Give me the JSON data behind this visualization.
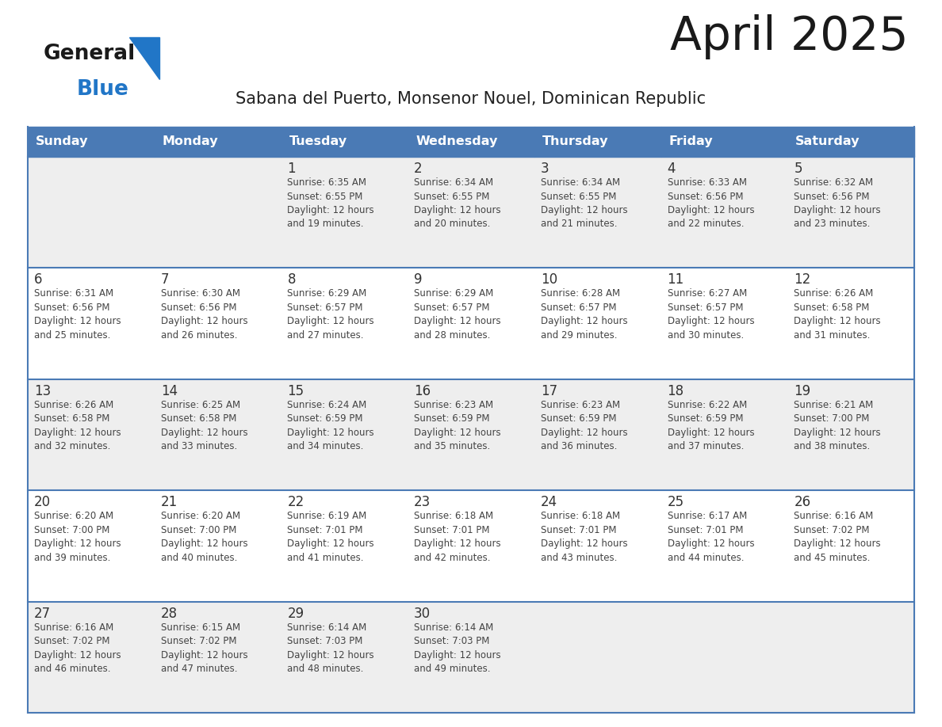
{
  "title": "April 2025",
  "subtitle": "Sabana del Puerto, Monsenor Nouel, Dominican Republic",
  "header_bg_color": "#4a7ab5",
  "header_text_color": "#ffffff",
  "weekdays": [
    "Sunday",
    "Monday",
    "Tuesday",
    "Wednesday",
    "Thursday",
    "Friday",
    "Saturday"
  ],
  "row_bg_odd": "#eeeeee",
  "row_bg_even": "#ffffff",
  "cell_border_color": "#4a7ab5",
  "day_text_color": "#333333",
  "info_text_color": "#444444",
  "title_color": "#1a1a1a",
  "subtitle_color": "#222222",
  "logo_general_color": "#1a1a1a",
  "logo_blue_color": "#2176c7",
  "calendar_data": [
    [
      {
        "day": "",
        "info": ""
      },
      {
        "day": "",
        "info": ""
      },
      {
        "day": "1",
        "info": "Sunrise: 6:35 AM\nSunset: 6:55 PM\nDaylight: 12 hours\nand 19 minutes."
      },
      {
        "day": "2",
        "info": "Sunrise: 6:34 AM\nSunset: 6:55 PM\nDaylight: 12 hours\nand 20 minutes."
      },
      {
        "day": "3",
        "info": "Sunrise: 6:34 AM\nSunset: 6:55 PM\nDaylight: 12 hours\nand 21 minutes."
      },
      {
        "day": "4",
        "info": "Sunrise: 6:33 AM\nSunset: 6:56 PM\nDaylight: 12 hours\nand 22 minutes."
      },
      {
        "day": "5",
        "info": "Sunrise: 6:32 AM\nSunset: 6:56 PM\nDaylight: 12 hours\nand 23 minutes."
      }
    ],
    [
      {
        "day": "6",
        "info": "Sunrise: 6:31 AM\nSunset: 6:56 PM\nDaylight: 12 hours\nand 25 minutes."
      },
      {
        "day": "7",
        "info": "Sunrise: 6:30 AM\nSunset: 6:56 PM\nDaylight: 12 hours\nand 26 minutes."
      },
      {
        "day": "8",
        "info": "Sunrise: 6:29 AM\nSunset: 6:57 PM\nDaylight: 12 hours\nand 27 minutes."
      },
      {
        "day": "9",
        "info": "Sunrise: 6:29 AM\nSunset: 6:57 PM\nDaylight: 12 hours\nand 28 minutes."
      },
      {
        "day": "10",
        "info": "Sunrise: 6:28 AM\nSunset: 6:57 PM\nDaylight: 12 hours\nand 29 minutes."
      },
      {
        "day": "11",
        "info": "Sunrise: 6:27 AM\nSunset: 6:57 PM\nDaylight: 12 hours\nand 30 minutes."
      },
      {
        "day": "12",
        "info": "Sunrise: 6:26 AM\nSunset: 6:58 PM\nDaylight: 12 hours\nand 31 minutes."
      }
    ],
    [
      {
        "day": "13",
        "info": "Sunrise: 6:26 AM\nSunset: 6:58 PM\nDaylight: 12 hours\nand 32 minutes."
      },
      {
        "day": "14",
        "info": "Sunrise: 6:25 AM\nSunset: 6:58 PM\nDaylight: 12 hours\nand 33 minutes."
      },
      {
        "day": "15",
        "info": "Sunrise: 6:24 AM\nSunset: 6:59 PM\nDaylight: 12 hours\nand 34 minutes."
      },
      {
        "day": "16",
        "info": "Sunrise: 6:23 AM\nSunset: 6:59 PM\nDaylight: 12 hours\nand 35 minutes."
      },
      {
        "day": "17",
        "info": "Sunrise: 6:23 AM\nSunset: 6:59 PM\nDaylight: 12 hours\nand 36 minutes."
      },
      {
        "day": "18",
        "info": "Sunrise: 6:22 AM\nSunset: 6:59 PM\nDaylight: 12 hours\nand 37 minutes."
      },
      {
        "day": "19",
        "info": "Sunrise: 6:21 AM\nSunset: 7:00 PM\nDaylight: 12 hours\nand 38 minutes."
      }
    ],
    [
      {
        "day": "20",
        "info": "Sunrise: 6:20 AM\nSunset: 7:00 PM\nDaylight: 12 hours\nand 39 minutes."
      },
      {
        "day": "21",
        "info": "Sunrise: 6:20 AM\nSunset: 7:00 PM\nDaylight: 12 hours\nand 40 minutes."
      },
      {
        "day": "22",
        "info": "Sunrise: 6:19 AM\nSunset: 7:01 PM\nDaylight: 12 hours\nand 41 minutes."
      },
      {
        "day": "23",
        "info": "Sunrise: 6:18 AM\nSunset: 7:01 PM\nDaylight: 12 hours\nand 42 minutes."
      },
      {
        "day": "24",
        "info": "Sunrise: 6:18 AM\nSunset: 7:01 PM\nDaylight: 12 hours\nand 43 minutes."
      },
      {
        "day": "25",
        "info": "Sunrise: 6:17 AM\nSunset: 7:01 PM\nDaylight: 12 hours\nand 44 minutes."
      },
      {
        "day": "26",
        "info": "Sunrise: 6:16 AM\nSunset: 7:02 PM\nDaylight: 12 hours\nand 45 minutes."
      }
    ],
    [
      {
        "day": "27",
        "info": "Sunrise: 6:16 AM\nSunset: 7:02 PM\nDaylight: 12 hours\nand 46 minutes."
      },
      {
        "day": "28",
        "info": "Sunrise: 6:15 AM\nSunset: 7:02 PM\nDaylight: 12 hours\nand 47 minutes."
      },
      {
        "day": "29",
        "info": "Sunrise: 6:14 AM\nSunset: 7:03 PM\nDaylight: 12 hours\nand 48 minutes."
      },
      {
        "day": "30",
        "info": "Sunrise: 6:14 AM\nSunset: 7:03 PM\nDaylight: 12 hours\nand 49 minutes."
      },
      {
        "day": "",
        "info": ""
      },
      {
        "day": "",
        "info": ""
      },
      {
        "day": "",
        "info": ""
      }
    ]
  ]
}
